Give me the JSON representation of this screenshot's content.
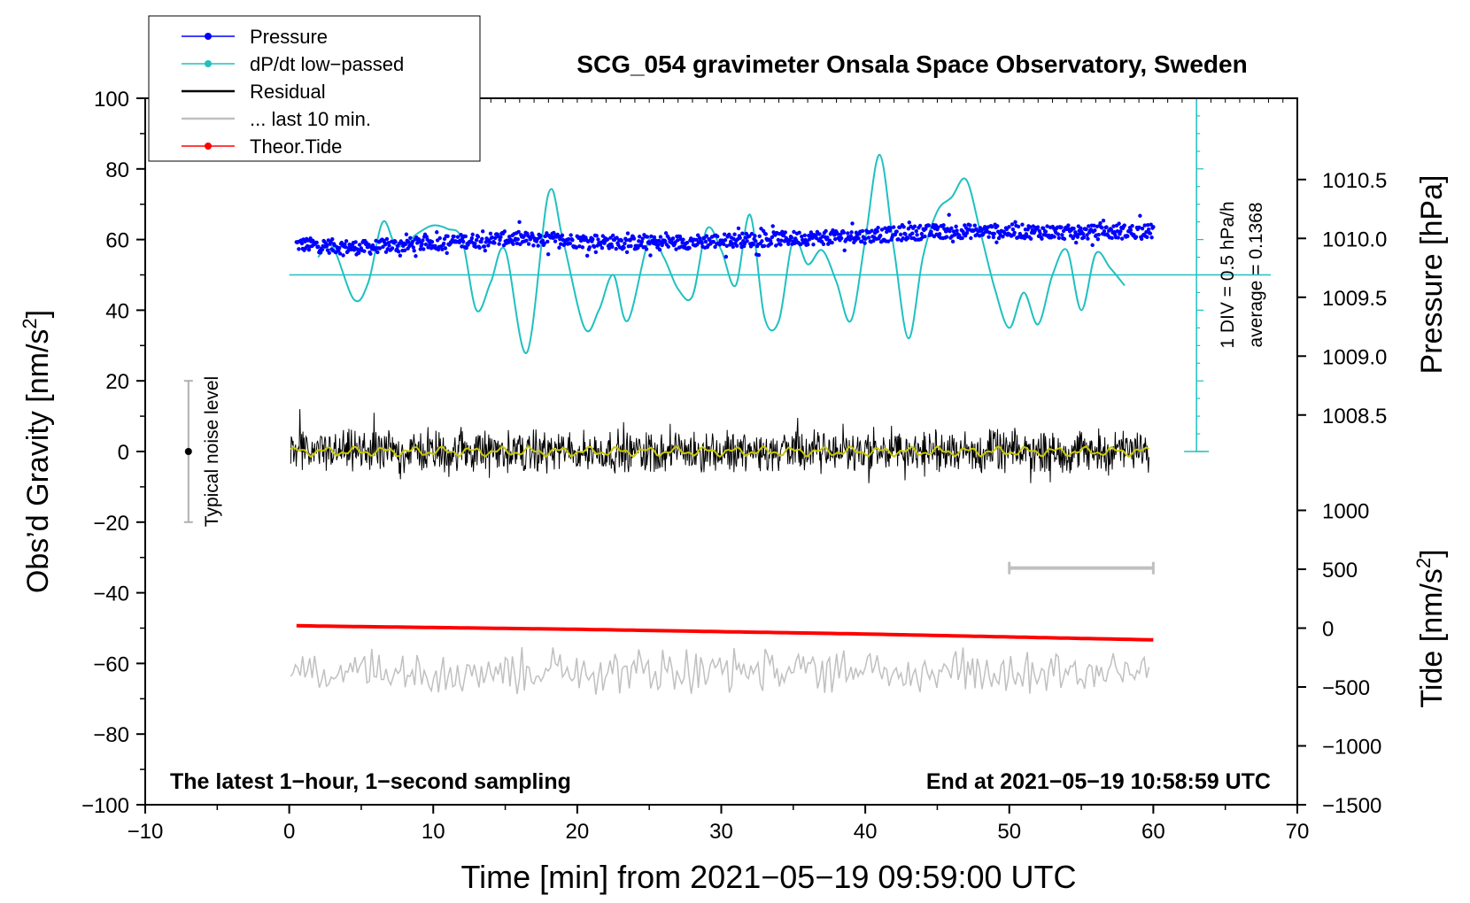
{
  "chart_data": {
    "type": "line",
    "title": "SCG_054 gravimeter Onsala Space Observatory, Sweden",
    "xlabel": "Time [min] from 2021−05−19 09:59:00 UTC",
    "xlim": [
      -10,
      70
    ],
    "x_ticks": [
      -10,
      0,
      10,
      20,
      30,
      40,
      50,
      60,
      70
    ],
    "x_tick_labels": [
      "−10",
      "0",
      "10",
      "20",
      "30",
      "40",
      "50",
      "60",
      "70"
    ],
    "y_left": {
      "label_main": "Obs’d Gravity [nm/s",
      "label_sup": "2",
      "label_end": "]",
      "ylim": [
        -100,
        100
      ],
      "ticks": [
        100,
        80,
        60,
        40,
        20,
        0,
        -20,
        -40,
        -60,
        -80,
        -100
      ],
      "tick_labels": [
        "100",
        "80",
        "60",
        "40",
        "20",
        "0",
        "−20",
        "−40",
        "−60",
        "−80",
        "−100"
      ]
    },
    "y_right_pressure": {
      "label": "Pressure [hPa]",
      "ticks": [
        1010.5,
        1010.0,
        1009.5,
        1009.0,
        1008.5
      ],
      "tick_labels": [
        "1010.5",
        "1010.0",
        "1009.5",
        "1009.0",
        "1008.5"
      ],
      "left_value_of_1010": 60.33,
      "left_units_per_hPa": 33.33
    },
    "y_right_tide": {
      "label_main": "Tide [nm/s",
      "label_sup": "2",
      "label_end": "]",
      "ticks": [
        1000,
        500,
        0,
        -500,
        -1000,
        -1500
      ],
      "tick_labels": [
        "1000",
        "500",
        "0",
        "−500",
        "−1000",
        "−1500"
      ],
      "left_value_of_0": -50.0,
      "left_units_per_500": 16.67
    },
    "series": [
      {
        "name": "Pressure",
        "color": "#0000ff",
        "axis": "pressure",
        "x": [
          0.5,
          5,
          10,
          15,
          20,
          25,
          30,
          35,
          40,
          45,
          50,
          55,
          60
        ],
        "values": [
          1009.95,
          1009.92,
          1009.96,
          1010.0,
          1009.98,
          1009.96,
          1009.98,
          1010.0,
          1010.02,
          1010.06,
          1010.06,
          1010.05,
          1010.06
        ]
      },
      {
        "name": "dP/dt low−passed",
        "color": "#20c0c0",
        "axis": "left",
        "x": [
          2,
          3,
          4.5,
          5.5,
          6.5,
          7.5,
          9,
          10,
          11,
          12,
          13,
          14,
          15,
          16.5,
          18,
          19,
          20.5,
          21.5,
          22.5,
          23.5,
          25,
          26,
          27,
          28,
          29,
          30,
          31,
          32,
          33,
          34,
          35,
          36,
          37,
          38,
          39,
          40,
          41,
          42,
          43,
          44,
          45,
          46,
          47,
          48,
          49,
          50,
          51,
          52,
          53,
          54,
          55,
          56,
          57,
          58
        ],
        "values": [
          55,
          58,
          43,
          48,
          65,
          58,
          62,
          64,
          63,
          60,
          40,
          48,
          57,
          28,
          73,
          60,
          35,
          40,
          50,
          37,
          60,
          55,
          46,
          44,
          63,
          57,
          47,
          67,
          38,
          37,
          60,
          53,
          57,
          48,
          37,
          60,
          84,
          57,
          32,
          55,
          68,
          72,
          77,
          62,
          46,
          35,
          45,
          36,
          50,
          57,
          40,
          56,
          52,
          47
        ]
      },
      {
        "name": "Residual",
        "color": "#000000",
        "axis": "left",
        "x": [
          0,
          10,
          20,
          30,
          40,
          50,
          60
        ],
        "values": [
          0,
          0,
          0,
          0,
          0,
          0,
          0
        ]
      },
      {
        "name": "... last 10 min.",
        "color": "#c0c0c0",
        "axis": "left",
        "x": [
          0,
          10,
          20,
          30,
          40,
          50,
          60
        ],
        "values": [
          -62,
          -62,
          -62,
          -62,
          -62,
          -62,
          -62
        ]
      },
      {
        "name": "Theor.Tide",
        "color": "#ff0000",
        "axis": "tide",
        "x": [
          0.5,
          10,
          20,
          30,
          40,
          50,
          60
        ],
        "values": [
          20,
          5,
          -10,
          -30,
          -50,
          -75,
          -100
        ]
      }
    ],
    "legend": {
      "placement": "top-left",
      "items": [
        {
          "label": "Pressure",
          "color": "#0000ff",
          "marker": "dot"
        },
        {
          "label": "dP/dt low−passed",
          "color": "#20c0c0",
          "marker": "dot"
        },
        {
          "label": "Residual",
          "color": "#000000",
          "marker": "none"
        },
        {
          "label": "... last 10 min.",
          "color": "#c0c0c0",
          "marker": "none"
        },
        {
          "label": "Theor.Tide",
          "color": "#ff0000",
          "marker": "dot"
        }
      ]
    },
    "annotations": {
      "noise_label": "Typical noise level",
      "noise_range": [
        -20,
        20
      ],
      "noise_x": -7,
      "ddt_scale_label": "1 DIV = 0.5 hPa/h",
      "ddt_average_label": "average = 0.1368",
      "ddt_baseline": 50,
      "last10_bar": {
        "x": [
          50,
          60
        ],
        "y": -33
      },
      "footer_left": "The latest 1−hour, 1−second sampling",
      "footer_right": "End at 2021−05−19 10:58:59 UTC"
    }
  }
}
